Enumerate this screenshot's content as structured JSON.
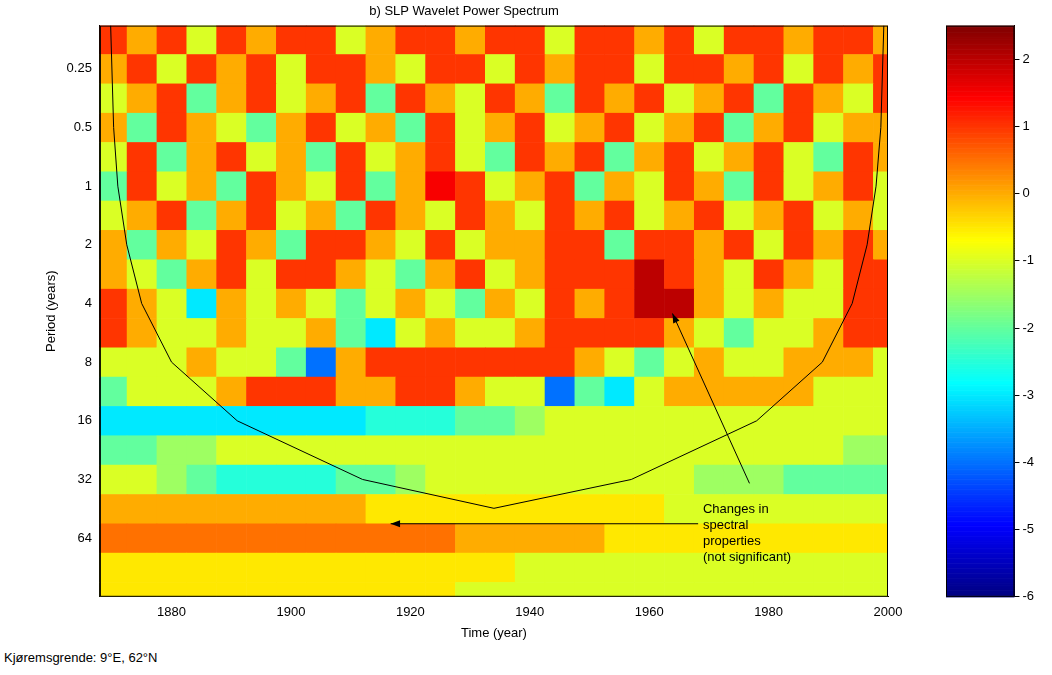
{
  "chart_data": {
    "type": "heatmap",
    "title": "b) SLP Wavelet Power Spectrum",
    "x_label": "Time (year)",
    "y_label": "Period (years)",
    "footnote": "Kjøremsgrende: 9°E, 62°N",
    "log": "y",
    "grid": false,
    "xlim": [
      1868,
      2000
    ],
    "xticks": [
      1880,
      1900,
      1920,
      1940,
      1960,
      1980,
      2000
    ],
    "ylim": [
      0.15,
      128
    ],
    "yticks": [
      0.25,
      0.5,
      1,
      2,
      4,
      8,
      16,
      32,
      64
    ],
    "x": [
      1870,
      1875,
      1880,
      1885,
      1890,
      1895,
      1900,
      1905,
      1910,
      1915,
      1920,
      1925,
      1930,
      1935,
      1940,
      1945,
      1950,
      1955,
      1960,
      1965,
      1970,
      1975,
      1980,
      1985,
      1990,
      1995,
      2000
    ],
    "y": [
      0.177,
      0.25,
      0.354,
      0.5,
      0.707,
      1,
      1.41,
      2,
      2.83,
      4,
      5.66,
      8,
      11.3,
      16,
      22.6,
      32,
      45.3,
      64,
      90.5,
      128
    ],
    "cells": [
      [
        1,
        0,
        1,
        -1,
        1,
        0,
        1,
        1,
        -1,
        0,
        1,
        1,
        0,
        1,
        1,
        -1,
        1,
        1,
        0,
        1,
        -1,
        1,
        1,
        0,
        1,
        1,
        0
      ],
      [
        0,
        1,
        -1,
        1,
        0,
        1,
        -1,
        1,
        1,
        0,
        -1,
        1,
        1,
        -1,
        1,
        0,
        1,
        1,
        -1,
        1,
        1,
        0,
        1,
        -1,
        1,
        0,
        1
      ],
      [
        -1,
        0,
        1,
        -2,
        0,
        1,
        -1,
        0,
        1,
        -2,
        1,
        0,
        -1,
        1,
        0,
        -2,
        1,
        0,
        1,
        -1,
        0,
        1,
        -2,
        1,
        0,
        -1,
        1
      ],
      [
        0,
        -2,
        1,
        0,
        -1,
        -2,
        0,
        1,
        -1,
        0,
        -2,
        1,
        -1,
        0,
        1,
        -1,
        0,
        1,
        -1,
        0,
        1,
        -2,
        0,
        1,
        -1,
        0,
        0
      ],
      [
        -1,
        1,
        -2,
        0,
        1,
        -1,
        0,
        -2,
        1,
        -1,
        0,
        1,
        -1,
        -2,
        1,
        0,
        1,
        -2,
        0,
        1,
        -1,
        0,
        1,
        -1,
        -2,
        1,
        0
      ],
      [
        -2,
        1,
        -1,
        0,
        -2,
        1,
        0,
        -1,
        1,
        -2,
        0,
        1.5,
        1,
        -1,
        0,
        1,
        -2,
        0,
        -1,
        1,
        0,
        -2,
        1,
        -1,
        0,
        1,
        -1
      ],
      [
        -1,
        0,
        1,
        -2,
        0,
        1,
        -1,
        0,
        -2,
        1,
        0,
        -1,
        1,
        0,
        -1,
        1,
        0,
        1,
        -1,
        0,
        1,
        -1,
        0,
        1,
        -1,
        0,
        -1
      ],
      [
        0,
        -2,
        0,
        -1,
        1,
        0,
        -2,
        1,
        1,
        0,
        -1,
        1,
        -1,
        0,
        0,
        1,
        1,
        -2,
        1,
        1,
        0,
        1,
        -1,
        1,
        0,
        1,
        0
      ],
      [
        0,
        -1,
        -2,
        0,
        1,
        -1,
        1,
        1,
        0,
        -1,
        -2,
        0,
        1,
        -1,
        0,
        1,
        1,
        1,
        2,
        1,
        0,
        -1,
        1,
        0,
        -1,
        1,
        1
      ],
      [
        1,
        0,
        -1,
        -3,
        0,
        -1,
        0,
        -1,
        -2,
        -1,
        0,
        -1,
        -2,
        0,
        -1,
        1,
        0,
        1,
        2,
        2,
        0,
        -1,
        0,
        -1,
        -1,
        1,
        1
      ],
      [
        1,
        0,
        -1,
        -1,
        0,
        -1,
        -1,
        0,
        -2,
        -3,
        -1,
        0,
        -1,
        -1,
        0,
        1,
        1,
        1,
        1,
        0,
        -1,
        -2,
        -1,
        -1,
        0,
        1,
        1
      ],
      [
        -1,
        -1,
        -1,
        0,
        -1,
        -1,
        -2,
        -4,
        0,
        1,
        1,
        1,
        1,
        1,
        1,
        1,
        0,
        -1,
        -2,
        -1,
        0,
        -1,
        -1,
        0,
        0,
        0,
        -1
      ],
      [
        -2,
        -1,
        -1,
        -1,
        0,
        1,
        1,
        1,
        0,
        0,
        1,
        1,
        0,
        -1,
        -1,
        -4,
        -2,
        -3,
        -1,
        0,
        0,
        0,
        0,
        0,
        -1,
        -1,
        -1
      ],
      [
        -3,
        -3,
        -3,
        -3,
        -3,
        -3,
        -3,
        -3,
        -3,
        -2.5,
        -2.5,
        -2.5,
        -2,
        -2,
        -1.5,
        -1,
        -1,
        -1,
        -1,
        -1,
        -1,
        -1,
        -1,
        -1,
        -1,
        -1,
        -1
      ],
      [
        -2,
        -2,
        -1.5,
        -1.5,
        -1,
        -1,
        -1,
        -1,
        -1,
        -1,
        -1,
        -1,
        -1,
        -1,
        -1,
        -1,
        -1,
        -1,
        -1,
        -1,
        -1,
        -1,
        -1,
        -1,
        -1,
        -1.5,
        -1.5
      ],
      [
        -1,
        -1,
        -1.5,
        -2,
        -2.5,
        -2.5,
        -2.5,
        -2.5,
        -2,
        -2,
        -1.5,
        -1,
        -1,
        -1,
        -1,
        -1,
        -1,
        -1,
        -1,
        -1,
        -1.5,
        -1.5,
        -1.5,
        -2,
        -2,
        -2,
        -2
      ],
      [
        0,
        0,
        0,
        0,
        0,
        0,
        0,
        0,
        0,
        -0.5,
        -0.5,
        -0.5,
        -0.5,
        -0.5,
        -0.5,
        -0.5,
        -0.5,
        -0.5,
        -0.5,
        -1,
        -1,
        -1,
        -1,
        -1,
        -1,
        -1,
        -1
      ],
      [
        0.5,
        0.5,
        0.5,
        0.5,
        0.5,
        0.5,
        0.5,
        0.5,
        0.5,
        0.5,
        0.5,
        0.5,
        0,
        0,
        0,
        0,
        0,
        -0.5,
        -0.5,
        -0.5,
        -0.5,
        -0.5,
        -0.5,
        -0.5,
        -0.5,
        -0.5,
        -0.5
      ],
      [
        -0.5,
        -0.5,
        -0.5,
        -0.5,
        -0.5,
        -0.5,
        -0.5,
        -0.5,
        -0.5,
        -0.5,
        -0.5,
        -0.5,
        -0.5,
        -0.5,
        -1,
        -1,
        -1,
        -1,
        -1,
        -1,
        -1,
        -1,
        -1,
        -1,
        -1,
        -1,
        -1
      ],
      [
        -0.5,
        -0.5,
        -0.5,
        -0.5,
        -0.5,
        -0.5,
        -0.5,
        -0.5,
        -0.5,
        -0.5,
        -0.5,
        -0.5,
        -1,
        -1,
        -1,
        -1,
        -1,
        -1,
        -1,
        -1,
        -1,
        -1,
        -1,
        -1,
        -1,
        -1,
        -1
      ]
    ],
    "colorbar": {
      "range": [
        -6,
        2.5
      ],
      "ticks": [
        -6,
        -5,
        -4,
        -3,
        -2,
        -1,
        0,
        1,
        2
      ]
    },
    "coi": {
      "x": [
        1869.8,
        1870.3,
        1871,
        1872.5,
        1875,
        1880,
        1891,
        1912,
        1934,
        1957,
        1978,
        1989,
        1994,
        1996.5,
        1998,
        1998.8,
        1999.3
      ],
      "y": [
        0.15,
        0.5,
        1,
        2,
        4,
        8,
        16,
        32,
        45,
        32,
        16,
        8,
        4,
        2,
        1,
        0.5,
        0.15
      ]
    },
    "annotation": {
      "text": [
        "Changes in",
        "spectral",
        "properties",
        "(not significant)"
      ],
      "x": 1969,
      "y": 45.8,
      "arrows": [
        {
          "from": [
            1976.8,
            33.5
          ],
          "to": [
            1963.9,
            4.5
          ]
        },
        {
          "from": [
            1968.2,
            54
          ],
          "to": [
            1916.7,
            54
          ]
        }
      ]
    }
  }
}
